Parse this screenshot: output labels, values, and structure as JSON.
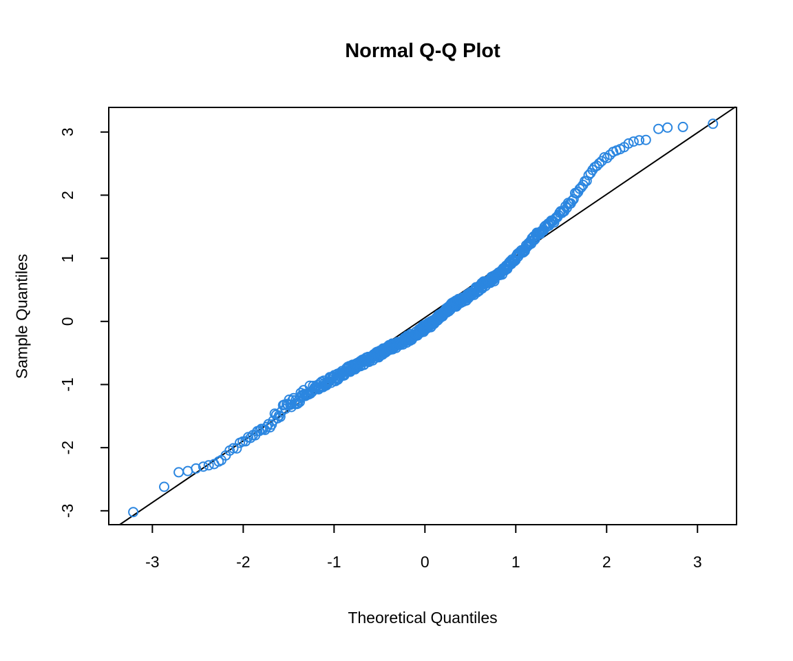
{
  "figure": {
    "title": "Normal Q-Q Plot",
    "x_axis_label": "Theoretical Quantiles",
    "y_axis_label": "Sample Quantiles"
  },
  "chart_data": {
    "type": "scatter",
    "title": "Normal Q-Q Plot",
    "xlabel": "Theoretical Quantiles",
    "ylabel": "Sample Quantiles",
    "xlim": [
      -3.48,
      3.43
    ],
    "ylim": [
      -3.22,
      3.39
    ],
    "x_ticks": [
      "-3",
      "-2",
      "-1",
      "0",
      "1",
      "2",
      "3"
    ],
    "y_ticks": [
      "-3",
      "-2",
      "-1",
      "0",
      "1",
      "2",
      "3"
    ],
    "grid": false,
    "legend": null,
    "n_points": 600,
    "marker": {
      "shape": "open-circle",
      "radius_px": 6.5,
      "stroke_px": 2,
      "color": "#2b86e0"
    },
    "reference_line": {
      "color": "#000000",
      "x1": -3.36,
      "y1": -3.22,
      "x2": 3.42,
      "y2": 3.4
    },
    "outlier_points_low": [
      [
        -3.21,
        -3.02
      ],
      [
        -2.87,
        -2.62
      ],
      [
        -2.71,
        -2.39
      ],
      [
        -2.61,
        -2.37
      ],
      [
        -2.52,
        -2.33
      ],
      [
        -2.44,
        -2.3
      ],
      [
        -2.38,
        -2.28
      ],
      [
        -2.32,
        -2.26
      ],
      [
        -2.27,
        -2.22
      ]
    ],
    "outlier_points_high": [
      [
        2.57,
        3.05
      ],
      [
        2.67,
        3.07
      ],
      [
        2.84,
        3.08
      ],
      [
        3.17,
        3.13
      ]
    ],
    "band_x_range": [
      -2.25,
      2.52
    ],
    "qq_curve_knots": [
      [
        -2.25,
        -2.2
      ],
      [
        -2.18,
        -2.11
      ],
      [
        -2.1,
        -2.02
      ],
      [
        -2.0,
        -1.92
      ],
      [
        -1.9,
        -1.82
      ],
      [
        -1.8,
        -1.72
      ],
      [
        -1.7,
        -1.6
      ],
      [
        -1.6,
        -1.47
      ],
      [
        -1.5,
        -1.33
      ],
      [
        -1.42,
        -1.25
      ],
      [
        -1.33,
        -1.15
      ],
      [
        -1.25,
        -1.05
      ],
      [
        -1.15,
        -0.99
      ],
      [
        -1.05,
        -0.94
      ],
      [
        -0.95,
        -0.87
      ],
      [
        -0.85,
        -0.77
      ],
      [
        -0.7,
        -0.66
      ],
      [
        -0.55,
        -0.55
      ],
      [
        -0.4,
        -0.43
      ],
      [
        -0.25,
        -0.33
      ],
      [
        -0.1,
        -0.2
      ],
      [
        0.0,
        -0.1
      ],
      [
        0.1,
        -0.02
      ],
      [
        0.2,
        0.12
      ],
      [
        0.3,
        0.25
      ],
      [
        0.4,
        0.33
      ],
      [
        0.5,
        0.42
      ],
      [
        0.63,
        0.57
      ],
      [
        0.78,
        0.7
      ],
      [
        0.9,
        0.85
      ],
      [
        1.0,
        1.0
      ],
      [
        1.1,
        1.15
      ],
      [
        1.2,
        1.32
      ],
      [
        1.3,
        1.47
      ],
      [
        1.4,
        1.57
      ],
      [
        1.5,
        1.72
      ],
      [
        1.6,
        1.88
      ],
      [
        1.66,
        2.02
      ],
      [
        1.72,
        2.12
      ],
      [
        1.78,
        2.25
      ],
      [
        1.84,
        2.4
      ],
      [
        1.9,
        2.5
      ],
      [
        1.97,
        2.57
      ],
      [
        2.05,
        2.64
      ],
      [
        2.12,
        2.7
      ],
      [
        2.2,
        2.78
      ],
      [
        2.28,
        2.83
      ],
      [
        2.36,
        2.855
      ],
      [
        2.44,
        2.865
      ],
      [
        2.52,
        2.88
      ]
    ],
    "band_halfwidth_knots": [
      [
        -2.4,
        0.02
      ],
      [
        -1.9,
        0.04
      ],
      [
        -1.6,
        0.09
      ],
      [
        -1.45,
        0.1
      ],
      [
        -1.2,
        0.08
      ],
      [
        -0.9,
        0.05
      ],
      [
        0.0,
        0.055
      ],
      [
        0.8,
        0.05
      ],
      [
        1.2,
        0.04
      ],
      [
        1.6,
        0.035
      ],
      [
        2.0,
        0.03
      ],
      [
        2.3,
        0.02
      ],
      [
        2.52,
        0.015
      ]
    ]
  }
}
